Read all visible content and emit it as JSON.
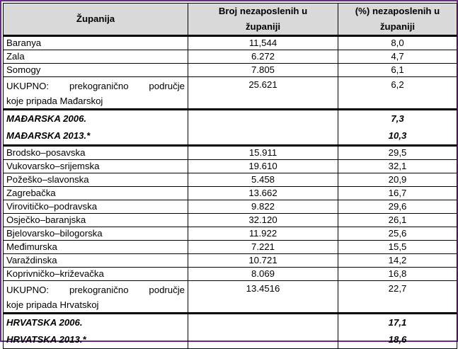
{
  "table": {
    "headers": {
      "col1": "Županija",
      "col2_line1": "Broj nezaposlenih u",
      "col2_line2": "županiji",
      "col3_line1": "(%) nezaposlenih u",
      "col3_line2": "županiji"
    },
    "hu_rows": [
      {
        "name": "Baranya",
        "count": "11,544",
        "pct": "8,0"
      },
      {
        "name": "Zala",
        "count": "6.272",
        "pct": "4,7"
      },
      {
        "name": "Somogy",
        "count": "7.805",
        "pct": "6,1"
      }
    ],
    "hu_total": {
      "line1": "UKUPNO: prekogranično područje",
      "line2": "koje pripada Mađarskoj",
      "count": "25.621",
      "pct": "6,2"
    },
    "hu_country": {
      "line1": "MAĐARSKA 2006.",
      "line2": "MAĐARSKA 2013.*",
      "pct1": "7,3",
      "pct2": "10,3"
    },
    "hr_rows": [
      {
        "name": "Brodsko–posavska",
        "count": "15.911",
        "pct": "29,5"
      },
      {
        "name": "Vukovarsko–srijemska",
        "count": "19.610",
        "pct": "32,1"
      },
      {
        "name": "Požeško–slavonska",
        "count": "5.458",
        "pct": "20,9"
      },
      {
        "name": "Zagrebačka",
        "count": "13.662",
        "pct": "16,7"
      },
      {
        "name": "Virovitičko–podravska",
        "count": "9.822",
        "pct": "29,6"
      },
      {
        "name": "Osječko–baranjska",
        "count": "32.120",
        "pct": "26,1"
      },
      {
        "name": "Bjelovarsko–bilogorska",
        "count": "11.922",
        "pct": "25,6"
      },
      {
        "name": "Međimurska",
        "count": "7.221",
        "pct": "15,5"
      },
      {
        "name": "Varaždinska",
        "count": "10.721",
        "pct": "14,2"
      },
      {
        "name": "Koprivničko–križevačka",
        "count": "8.069",
        "pct": "16,8"
      }
    ],
    "hr_total": {
      "line1": "UKUPNO: prekogranično područje",
      "line2": "koje pripada Hrvatskoj",
      "count": "13.4516",
      "pct": "22,7"
    },
    "hr_country": {
      "line1": "HRVATSKA 2006.",
      "line2": "HRVATSKA 2013.*",
      "pct1": "17,1",
      "pct2": "18,6"
    }
  }
}
